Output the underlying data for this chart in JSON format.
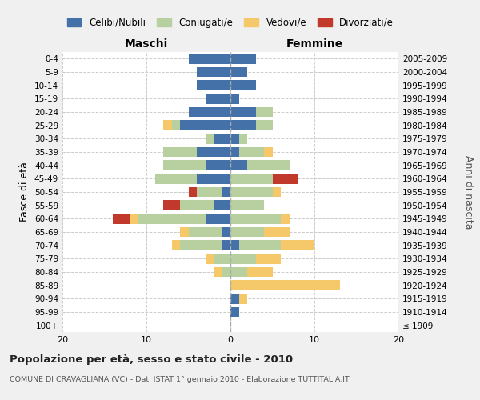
{
  "age_groups": [
    "100+",
    "95-99",
    "90-94",
    "85-89",
    "80-84",
    "75-79",
    "70-74",
    "65-69",
    "60-64",
    "55-59",
    "50-54",
    "45-49",
    "40-44",
    "35-39",
    "30-34",
    "25-29",
    "20-24",
    "15-19",
    "10-14",
    "5-9",
    "0-4"
  ],
  "birth_years": [
    "≤ 1909",
    "1910-1914",
    "1915-1919",
    "1920-1924",
    "1925-1929",
    "1930-1934",
    "1935-1939",
    "1940-1944",
    "1945-1949",
    "1950-1954",
    "1955-1959",
    "1960-1964",
    "1965-1969",
    "1970-1974",
    "1975-1979",
    "1980-1984",
    "1985-1989",
    "1990-1994",
    "1995-1999",
    "2000-2004",
    "2005-2009"
  ],
  "males": {
    "celibi": [
      0,
      0,
      0,
      0,
      0,
      0,
      1,
      1,
      3,
      2,
      1,
      4,
      3,
      4,
      2,
      6,
      5,
      3,
      4,
      4,
      5
    ],
    "coniugati": [
      0,
      0,
      0,
      0,
      1,
      2,
      5,
      4,
      8,
      4,
      3,
      5,
      5,
      4,
      1,
      1,
      0,
      0,
      0,
      0,
      0
    ],
    "vedovi": [
      0,
      0,
      0,
      0,
      1,
      1,
      1,
      1,
      1,
      0,
      0,
      0,
      0,
      0,
      0,
      1,
      0,
      0,
      0,
      0,
      0
    ],
    "divorziati": [
      0,
      0,
      0,
      0,
      0,
      0,
      0,
      0,
      2,
      2,
      1,
      0,
      0,
      0,
      0,
      0,
      0,
      0,
      0,
      0,
      0
    ]
  },
  "females": {
    "nubili": [
      0,
      1,
      1,
      0,
      0,
      0,
      1,
      0,
      0,
      0,
      0,
      0,
      2,
      1,
      1,
      3,
      3,
      1,
      3,
      2,
      3
    ],
    "coniugate": [
      0,
      0,
      0,
      0,
      2,
      3,
      5,
      4,
      6,
      4,
      5,
      5,
      5,
      3,
      1,
      2,
      2,
      0,
      0,
      0,
      0
    ],
    "vedove": [
      0,
      0,
      1,
      13,
      3,
      3,
      4,
      3,
      1,
      0,
      1,
      0,
      0,
      1,
      0,
      0,
      0,
      0,
      0,
      0,
      0
    ],
    "divorziate": [
      0,
      0,
      0,
      0,
      0,
      0,
      0,
      0,
      0,
      0,
      0,
      3,
      0,
      0,
      0,
      0,
      0,
      0,
      0,
      0,
      0
    ]
  },
  "colors": {
    "celibi": "#4472a8",
    "coniugati": "#b8cfa0",
    "vedovi": "#f5c96a",
    "divorziati": "#c0392b"
  },
  "xlim": [
    -20,
    20
  ],
  "xticks": [
    -20,
    -10,
    0,
    10,
    20
  ],
  "xticklabels": [
    "20",
    "10",
    "0",
    "10",
    "20"
  ],
  "title": "Popolazione per età, sesso e stato civile - 2010",
  "subtitle": "COMUNE DI CRAVAGLIANA (VC) - Dati ISTAT 1° gennaio 2010 - Elaborazione TUTTITALIA.IT",
  "ylabel": "Fasce di età",
  "ylabel_right": "Anni di nascita",
  "label_maschi": "Maschi",
  "label_femmine": "Femmine",
  "legend_labels": [
    "Celibi/Nubili",
    "Coniugati/e",
    "Vedovi/e",
    "Divorziati/e"
  ],
  "background_color": "#f0f0f0",
  "plot_bg_color": "#ffffff"
}
